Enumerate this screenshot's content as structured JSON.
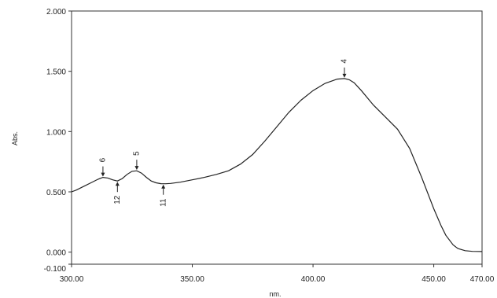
{
  "chart_data": {
    "type": "line",
    "title": "",
    "xlabel": "nm.",
    "ylabel": "Abs.",
    "xlim": [
      300.0,
      470.0
    ],
    "ylim": [
      -0.1,
      2.0
    ],
    "x_ticks": [
      "300.00",
      "350.00",
      "400.00",
      "450.00",
      "470.00"
    ],
    "x_tick_values": [
      300.0,
      350.0,
      400.0,
      450.0,
      470.0
    ],
    "y_ticks": [
      "2.000",
      "1.500",
      "1.000",
      "0.500",
      "0.000",
      "-0.100"
    ],
    "y_tick_values": [
      2.0,
      1.5,
      1.0,
      0.5,
      0.0,
      -0.1
    ],
    "grid": false,
    "series": [
      {
        "x": [
          300,
          302,
          305,
          308,
          311,
          313,
          315,
          317,
          319,
          321,
          323,
          325,
          327,
          329,
          331,
          333,
          335,
          337,
          339,
          341,
          345,
          350,
          355,
          360,
          365,
          370,
          375,
          380,
          385,
          390,
          395,
          400,
          405,
          410,
          413,
          415,
          417,
          420,
          425,
          430,
          435,
          440,
          445,
          450,
          453,
          455,
          458,
          460,
          463,
          466,
          470
        ],
        "y": [
          0.5,
          0.515,
          0.545,
          0.575,
          0.605,
          0.62,
          0.615,
          0.6,
          0.59,
          0.61,
          0.645,
          0.67,
          0.675,
          0.655,
          0.62,
          0.59,
          0.575,
          0.568,
          0.567,
          0.57,
          0.58,
          0.6,
          0.62,
          0.645,
          0.675,
          0.73,
          0.81,
          0.92,
          1.04,
          1.16,
          1.26,
          1.34,
          1.4,
          1.435,
          1.44,
          1.43,
          1.405,
          1.34,
          1.22,
          1.12,
          1.02,
          0.86,
          0.62,
          0.36,
          0.22,
          0.14,
          0.06,
          0.03,
          0.012,
          0.006,
          0.005
        ]
      }
    ],
    "annotations": [
      {
        "label": "6",
        "x": 313.0,
        "y": 0.62,
        "position": "above"
      },
      {
        "label": "5",
        "x": 327.0,
        "y": 0.675,
        "position": "above"
      },
      {
        "label": "4",
        "x": 413.0,
        "y": 1.44,
        "position": "above"
      },
      {
        "label": "12",
        "x": 319.0,
        "y": 0.59,
        "position": "below"
      },
      {
        "label": "11",
        "x": 338.0,
        "y": 0.567,
        "position": "below"
      }
    ]
  }
}
